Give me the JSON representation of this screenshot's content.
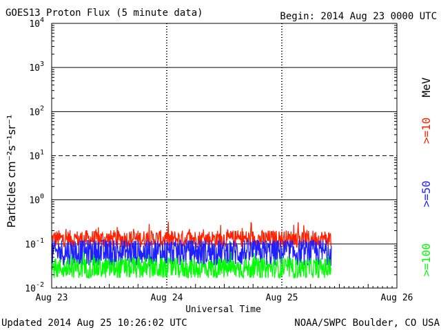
{
  "header": {
    "title": "GOES13 Proton Flux (5 minute data)",
    "begin": "Begin: 2014 Aug 23 0000 UTC"
  },
  "footer": {
    "updated": "Updated 2014 Aug 25 10:26:02 UTC",
    "credit": "NOAA/SWPC Boulder, CO USA"
  },
  "side_labels": {
    "unit": "MeV",
    "s10": ">=10",
    "s50": ">=50",
    "s100": ">=100"
  },
  "chart_data": {
    "type": "line",
    "title": "GOES13 Proton Flux (5 minute data)",
    "xlabel": "Universal Time",
    "ylabel": "Particles cm⁻²s⁻¹sr⁻¹",
    "y_scale": "log",
    "ylim": [
      0.01,
      10000
    ],
    "y_ticks": [
      {
        "label": "10",
        "exp": "-2",
        "value": 0.01
      },
      {
        "label": "10",
        "exp": "-1",
        "value": 0.1
      },
      {
        "label": "10",
        "exp": "0",
        "value": 1
      },
      {
        "label": "10",
        "exp": "1",
        "value": 10
      },
      {
        "label": "10",
        "exp": "2",
        "value": 100
      },
      {
        "label": "10",
        "exp": "3",
        "value": 1000
      },
      {
        "label": "10",
        "exp": "4",
        "value": 10000
      }
    ],
    "x_ticks": [
      "Aug 23",
      "Aug 24",
      "Aug 25",
      "Aug 26"
    ],
    "xlim_days": [
      0,
      3
    ],
    "grid": {
      "solid": [
        0.1,
        1,
        100,
        1000
      ],
      "dashed": [
        10
      ]
    },
    "series": [
      {
        "name": ">=10 MeV",
        "color": "#ff2000",
        "start_day": 0,
        "end_day": 2.43,
        "samples_per_day": 288,
        "min": 0.085,
        "typical": 0.13,
        "max": 0.33
      },
      {
        "name": ">=50 MeV",
        "color": "#2020ff",
        "start_day": 0,
        "end_day": 2.43,
        "samples_per_day": 288,
        "min": 0.033,
        "typical": 0.065,
        "max": 0.12
      },
      {
        "name": ">=100 MeV",
        "color": "#00ff00",
        "start_day": 0,
        "end_day": 2.43,
        "samples_per_day": 288,
        "min": 0.017,
        "typical": 0.028,
        "max": 0.07
      }
    ]
  }
}
